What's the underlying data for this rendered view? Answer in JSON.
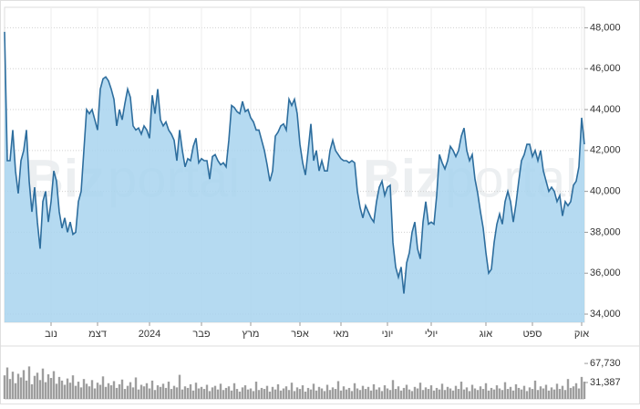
{
  "chart_data": [
    {
      "type": "area",
      "watermark": [
        "Biz",
        "portal"
      ],
      "line_color": "#2e6e9e",
      "fill_color": "#a8d3ef",
      "grid": true,
      "xlim": [
        0,
        212
      ],
      "ylim": [
        33600,
        49000
      ],
      "yticks": [
        {
          "value": 34000,
          "label": "34,000"
        },
        {
          "value": 36000,
          "label": "36,000"
        },
        {
          "value": 38000,
          "label": "38,000"
        },
        {
          "value": 40000,
          "label": "40,000"
        },
        {
          "value": 42000,
          "label": "42,000"
        },
        {
          "value": 44000,
          "label": "44,000"
        },
        {
          "value": 46000,
          "label": "46,000"
        },
        {
          "value": 48000,
          "label": "48,000"
        }
      ],
      "xticks": [
        {
          "value": 17,
          "label": "נוב"
        },
        {
          "value": 34,
          "label": "דצמ"
        },
        {
          "value": 53,
          "label": "2024"
        },
        {
          "value": 72,
          "label": "פבר"
        },
        {
          "value": 90,
          "label": "מרץ"
        },
        {
          "value": 108,
          "label": "אפר"
        },
        {
          "value": 123,
          "label": "מאי"
        },
        {
          "value": 140,
          "label": "יוני"
        },
        {
          "value": 156,
          "label": "יולי"
        },
        {
          "value": 176,
          "label": "אוג"
        },
        {
          "value": 193,
          "label": "ספט"
        },
        {
          "value": 211,
          "label": "אוק"
        }
      ],
      "values": [
        47800,
        41500,
        41500,
        43000,
        41000,
        39900,
        41500,
        42000,
        43000,
        40500,
        39000,
        40200,
        38500,
        37200,
        39500,
        40000,
        38500,
        39500,
        41000,
        40500,
        39000,
        38200,
        38700,
        38000,
        38500,
        37900,
        38000,
        39500,
        40000,
        42000,
        44000,
        43800,
        44000,
        43500,
        43000,
        45000,
        45500,
        45600,
        45400,
        45000,
        44500,
        43200,
        44000,
        43500,
        44300,
        45000,
        44600,
        43200,
        43000,
        43100,
        42800,
        43200,
        43000,
        42600,
        44700,
        43800,
        45000,
        43500,
        43200,
        43400,
        43000,
        42800,
        42500,
        41500,
        43000,
        42000,
        41200,
        41600,
        41500,
        42200,
        42600,
        41400,
        41600,
        41500,
        41500,
        40600,
        41700,
        41800,
        41500,
        41300,
        41400,
        41200,
        42500,
        44200,
        44100,
        43900,
        43800,
        44400,
        43900,
        44000,
        43600,
        43400,
        43000,
        43000,
        42500,
        42000,
        41300,
        40500,
        41000,
        42700,
        42900,
        43200,
        43300,
        43000,
        44500,
        44200,
        44500,
        43800,
        42300,
        41400,
        40800,
        42000,
        43300,
        41500,
        42000,
        41000,
        41500,
        41000,
        41000,
        42000,
        42500,
        42000,
        41800,
        41600,
        41500,
        41500,
        41400,
        41500,
        41400,
        40000,
        39200,
        38700,
        39300,
        39000,
        38700,
        38500,
        39500,
        40200,
        40500,
        39800,
        40200,
        40300,
        37500,
        36300,
        35800,
        36300,
        35000,
        36500,
        37000,
        38000,
        38500,
        37200,
        36700,
        38500,
        39500,
        38400,
        38500,
        38400,
        39800,
        41800,
        41400,
        41100,
        41500,
        42200,
        42000,
        41700,
        42000,
        42700,
        43100,
        42000,
        41500,
        41800,
        40600,
        39900,
        39000,
        38200,
        37000,
        36000,
        36200,
        37500,
        38400,
        38900,
        38400,
        39500,
        40000,
        39500,
        38500,
        39400,
        40500,
        41500,
        41800,
        42300,
        42300,
        41700,
        42000,
        41500,
        42000,
        41000,
        40500,
        40000,
        40200,
        40000,
        39500,
        39800,
        38800,
        39500,
        39300,
        39500,
        40300,
        40500,
        41200,
        43600,
        42300
      ]
    },
    {
      "type": "bar",
      "color": "#9e9e9e",
      "xlim": [
        0,
        212
      ],
      "ylim": [
        0,
        94000
      ],
      "yticks": [
        {
          "value": 31387,
          "label": "31,387"
        },
        {
          "value": 67730,
          "label": "67,730"
        }
      ],
      "values": [
        45000,
        60000,
        38000,
        52000,
        30000,
        48000,
        41000,
        55000,
        35000,
        62000,
        28000,
        44000,
        50000,
        36000,
        58000,
        32000,
        47000,
        40000,
        53000,
        29000,
        42000,
        35000,
        27000,
        39000,
        31000,
        45000,
        25000,
        33000,
        22000,
        38000,
        29000,
        24000,
        36000,
        20000,
        31000,
        27000,
        43000,
        23000,
        30000,
        26000,
        34000,
        21000,
        28000,
        37000,
        19000,
        25000,
        32000,
        22000,
        41000,
        18000,
        27000,
        24000,
        30000,
        20000,
        35000,
        17000,
        26000,
        23000,
        29000,
        21000,
        33000,
        19000,
        25000,
        22000,
        46000,
        18000,
        24000,
        21000,
        28000,
        16000,
        31000,
        20000,
        23000,
        19000,
        27000,
        15000,
        22000,
        25000,
        18000,
        29000,
        17000,
        21000,
        24000,
        16000,
        30000,
        19000,
        14000,
        22000,
        26000,
        18000,
        20000,
        15000,
        33000,
        17000,
        21000,
        19000,
        25000,
        14000,
        23000,
        18000,
        28000,
        16000,
        20000,
        24000,
        17000,
        31000,
        15000,
        22000,
        19000,
        26000,
        14000,
        21000,
        18000,
        29000,
        16000,
        23000,
        20000,
        15000,
        27000,
        17000,
        22000,
        19000,
        34000,
        16000,
        24000,
        18000,
        21000,
        15000,
        30000,
        20000,
        17000,
        25000,
        19000,
        23000,
        16000,
        28000,
        18000,
        22000,
        15000,
        26000,
        20000,
        17000,
        36000,
        19000,
        24000,
        16000,
        21000,
        27000,
        18000,
        15000,
        23000,
        20000,
        31000,
        17000,
        22000,
        19000,
        26000,
        16000,
        21000,
        18000,
        29000,
        17000,
        23000,
        20000,
        16000,
        25000,
        19000,
        33000,
        18000,
        22000,
        15000,
        27000,
        20000,
        17000,
        24000,
        19000,
        30000,
        16000,
        21000,
        18000,
        26000,
        20000,
        17000,
        32000,
        19000,
        23000,
        16000,
        28000,
        21000,
        18000,
        25000,
        15000,
        22000,
        19000,
        35000,
        17000,
        24000,
        20000,
        27000,
        16000,
        22000,
        18000,
        29000,
        19000,
        25000,
        17000,
        38000,
        21000,
        24000,
        30000,
        20000,
        42000,
        33000
      ]
    }
  ]
}
